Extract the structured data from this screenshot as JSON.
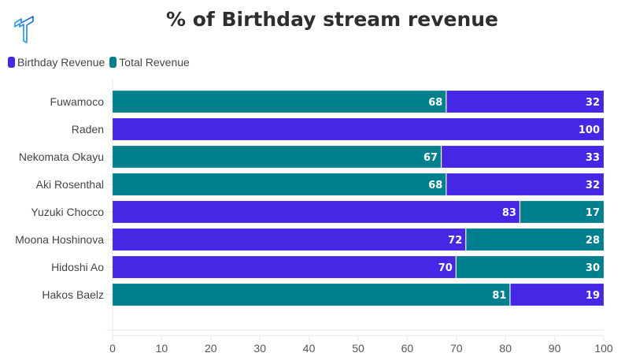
{
  "logo": {
    "icon": "brand-t-logo-icon"
  },
  "chart_data": {
    "type": "bar",
    "orientation": "horizontal",
    "stacked": true,
    "title": "% of Birthday stream revenue",
    "xlabel": "",
    "ylabel": "",
    "xlim": [
      0,
      100
    ],
    "x_ticks": [
      "0",
      "10",
      "20",
      "30",
      "40",
      "50",
      "60",
      "70",
      "80",
      "90",
      "100"
    ],
    "grid": true,
    "legend_position": "top-left",
    "legend": [
      {
        "name": "Birthday Revenue",
        "color": "#4527E6"
      },
      {
        "name": "Total Revenue",
        "color": "#00808E"
      }
    ],
    "categories": [
      "Fuwamoco",
      "Raden",
      "Nekomata Okayu",
      "Aki Rosenthal",
      "Yuzuki Chocco",
      "Moona Hoshinova",
      "Hidoshi Ao",
      "Hakos Baelz"
    ],
    "rows": [
      {
        "category": "Fuwamoco",
        "segments": [
          {
            "value": 68,
            "color": "#00808E"
          },
          {
            "value": 32,
            "color": "#4527E6"
          }
        ]
      },
      {
        "category": "Raden",
        "segments": [
          {
            "value": 100,
            "color": "#4527E6"
          }
        ]
      },
      {
        "category": "Nekomata Okayu",
        "segments": [
          {
            "value": 67,
            "color": "#00808E"
          },
          {
            "value": 33,
            "color": "#4527E6"
          }
        ]
      },
      {
        "category": "Aki Rosenthal",
        "segments": [
          {
            "value": 68,
            "color": "#00808E"
          },
          {
            "value": 32,
            "color": "#4527E6"
          }
        ]
      },
      {
        "category": "Yuzuki Chocco",
        "segments": [
          {
            "value": 83,
            "color": "#4527E6"
          },
          {
            "value": 17,
            "color": "#00808E"
          }
        ]
      },
      {
        "category": "Moona Hoshinova",
        "segments": [
          {
            "value": 72,
            "color": "#4527E6"
          },
          {
            "value": 28,
            "color": "#00808E"
          }
        ]
      },
      {
        "category": "Hidoshi Ao",
        "segments": [
          {
            "value": 70,
            "color": "#4527E6"
          },
          {
            "value": 30,
            "color": "#00808E"
          }
        ]
      },
      {
        "category": "Hakos Baelz",
        "segments": [
          {
            "value": 81,
            "color": "#00808E"
          },
          {
            "value": 19,
            "color": "#4527E6"
          }
        ]
      }
    ]
  },
  "colors": {
    "birthday": "#4527E6",
    "total": "#00808E",
    "grid": "#eeeeee",
    "title": "#2e2e2e"
  }
}
